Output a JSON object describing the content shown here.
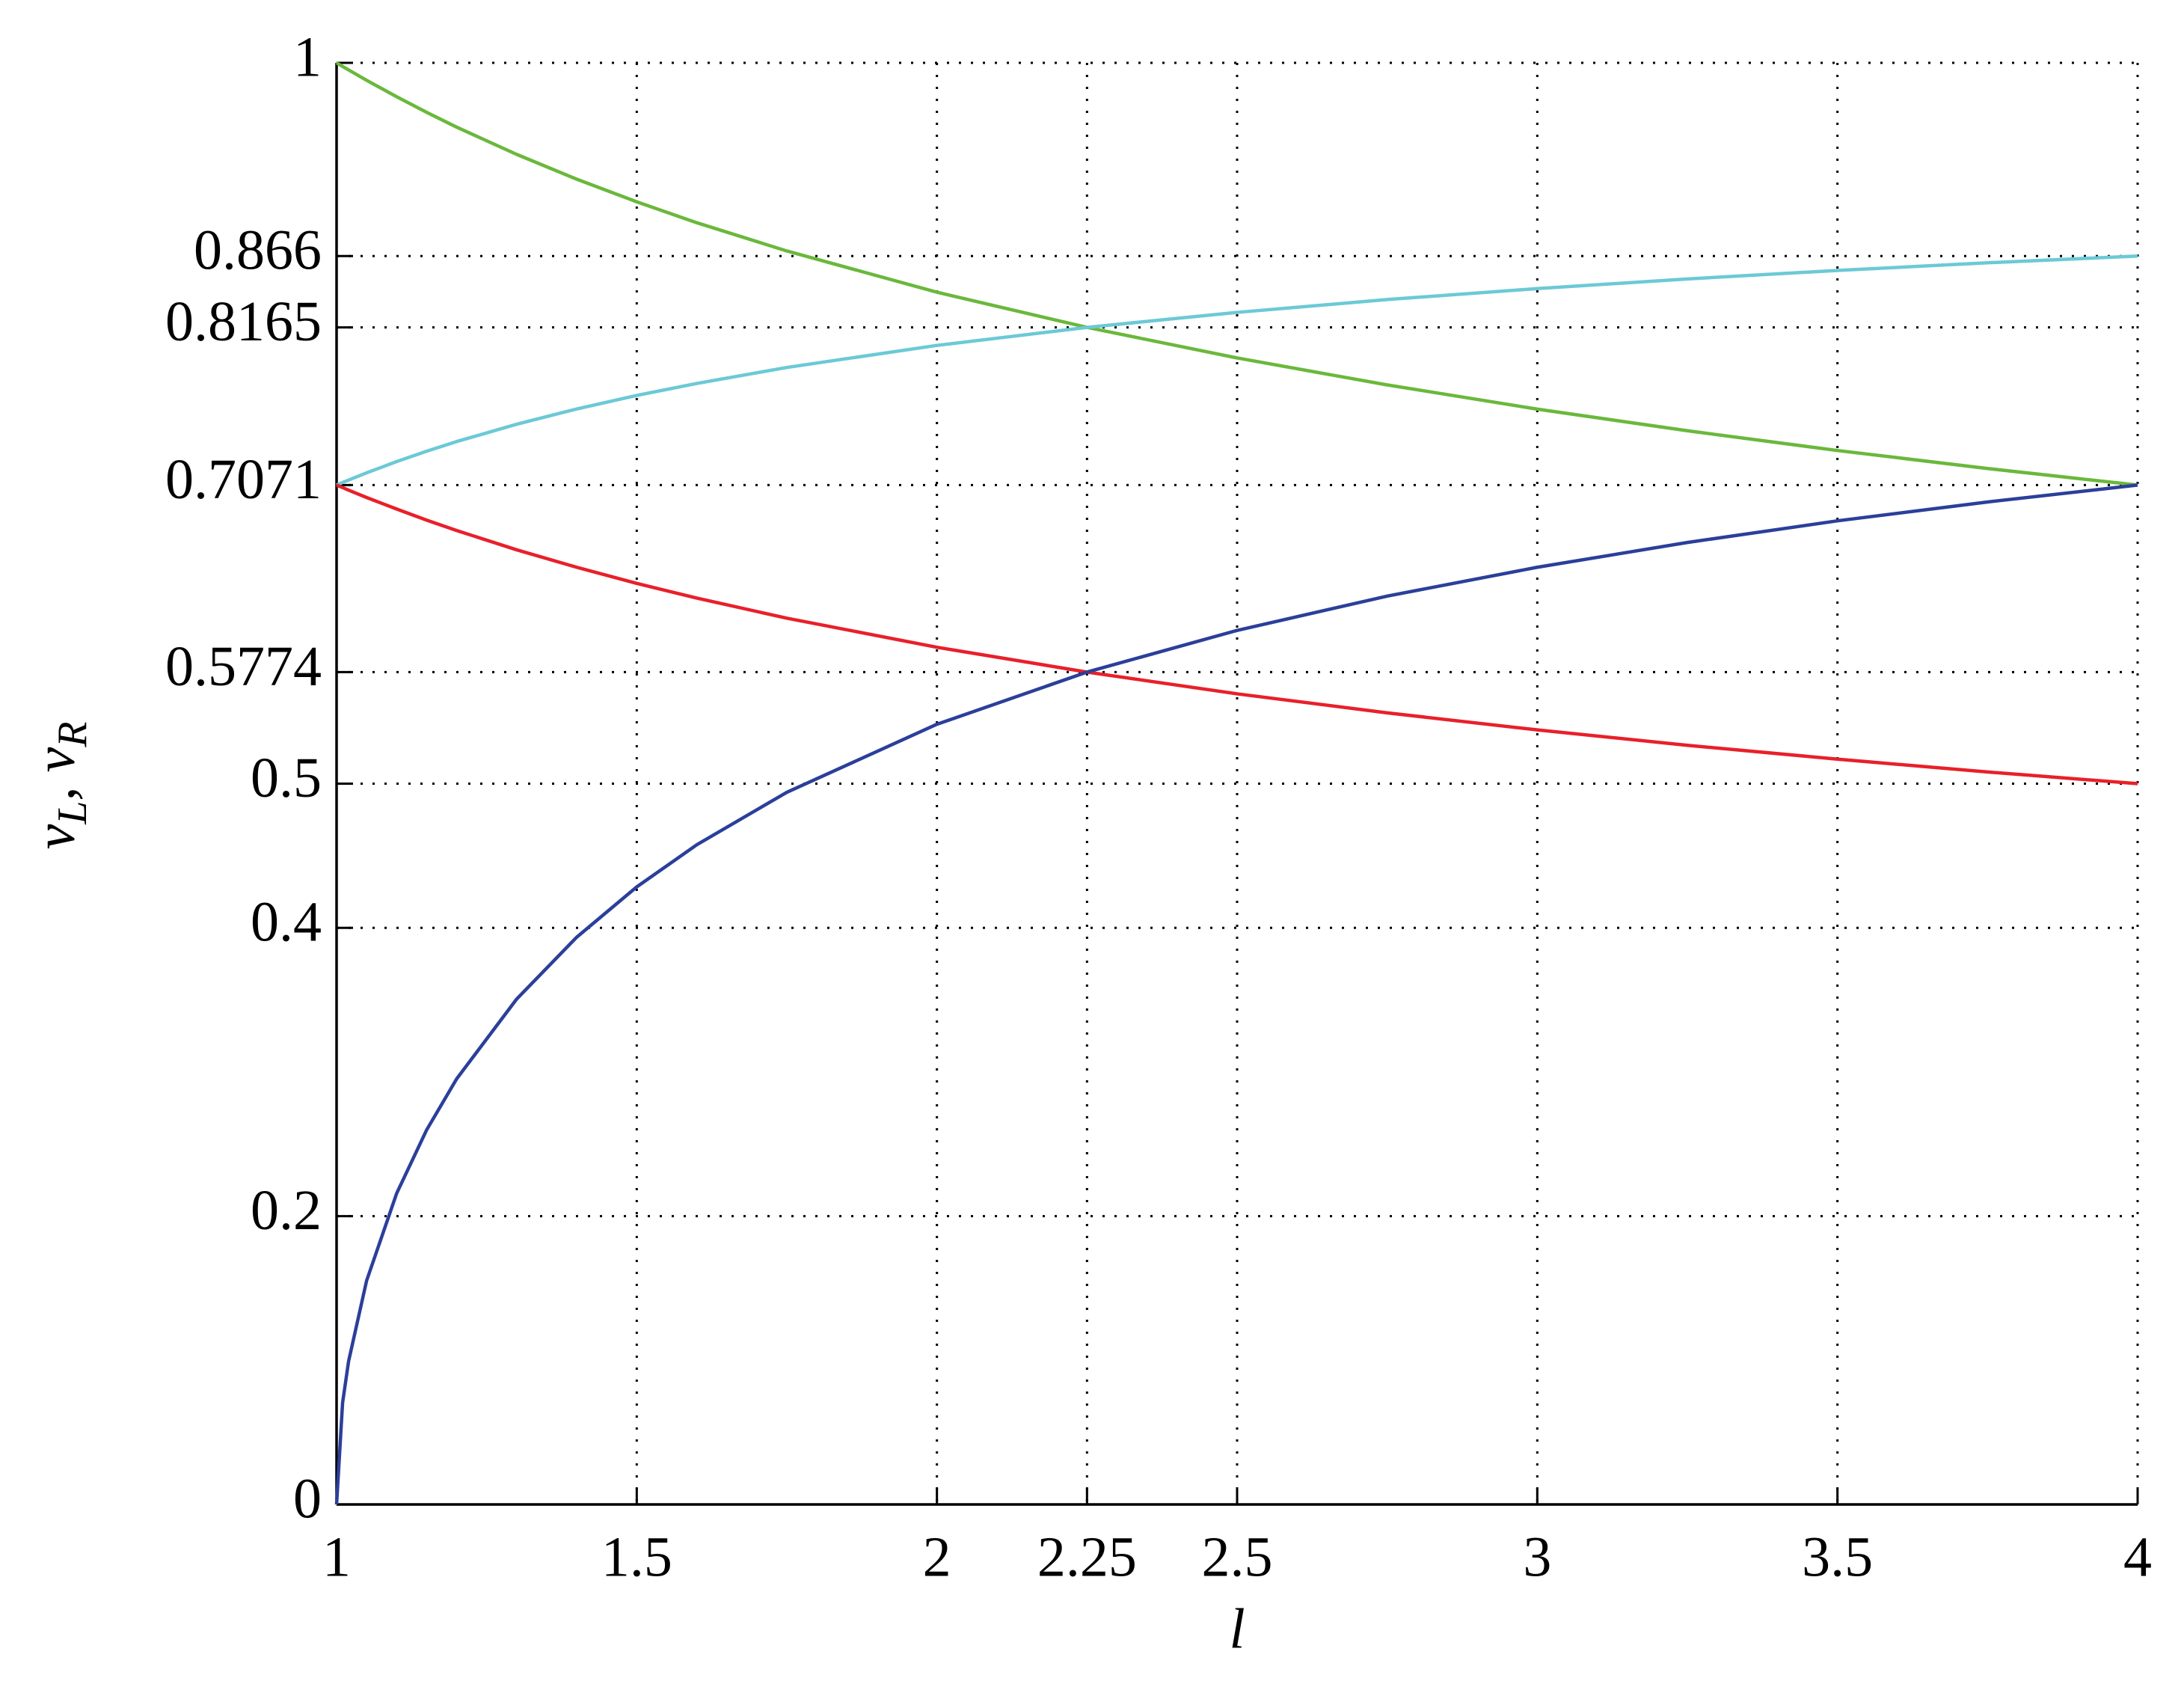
{
  "chart_data": {
    "type": "line",
    "xlabel": "l",
    "ylabel": [
      "v",
      "L",
      ", v",
      "R"
    ],
    "x": [
      1,
      1.01,
      1.02,
      1.05,
      1.1,
      1.15,
      1.2,
      1.3,
      1.4,
      1.5,
      1.6,
      1.75,
      2,
      2.25,
      2.5,
      2.75,
      3,
      3.25,
      3.5,
      3.75,
      4
    ],
    "series": [
      {
        "color": "#6ab83c",
        "values": [
          1,
          0.9975,
          0.9951,
          0.9879,
          0.9765,
          0.9657,
          0.9554,
          0.9365,
          0.9193,
          0.9036,
          0.8891,
          0.8695,
          0.8409,
          0.8165,
          0.7953,
          0.7766,
          0.7598,
          0.7448,
          0.7311,
          0.7186,
          0.7071
        ]
      },
      {
        "color": "#6cc9d6",
        "values": [
          0.7071,
          0.7089,
          0.7106,
          0.7156,
          0.7234,
          0.7306,
          0.7373,
          0.7493,
          0.7599,
          0.7693,
          0.7776,
          0.7887,
          0.804,
          0.8165,
          0.8269,
          0.8358,
          0.8434,
          0.8501,
          0.856,
          0.8613,
          0.866
        ]
      },
      {
        "color": "#e8202a",
        "values": [
          0.7071,
          0.7054,
          0.7036,
          0.6985,
          0.6905,
          0.6828,
          0.6756,
          0.6622,
          0.6501,
          0.6389,
          0.6287,
          0.6148,
          0.5946,
          0.5774,
          0.5623,
          0.5491,
          0.5373,
          0.5266,
          0.517,
          0.5081,
          0.5
        ]
      },
      {
        "color": "#2b3f9a",
        "values": [
          0,
          0.0705,
          0.0993,
          0.1552,
          0.2157,
          0.2598,
          0.2952,
          0.3506,
          0.3935,
          0.4284,
          0.4576,
          0.494,
          0.5412,
          0.5774,
          0.6063,
          0.6301,
          0.6501,
          0.6673,
          0.6823,
          0.6954,
          0.7071
        ]
      }
    ],
    "xlim": [
      1,
      4
    ],
    "ylim": [
      0,
      1
    ],
    "xticks": [
      1,
      1.5,
      2,
      2.25,
      2.5,
      3,
      3.5,
      4
    ],
    "yticks": [
      0,
      0.2,
      0.4,
      0.5,
      0.5774,
      0.7071,
      0.8165,
      0.866,
      1
    ],
    "grid": true
  }
}
